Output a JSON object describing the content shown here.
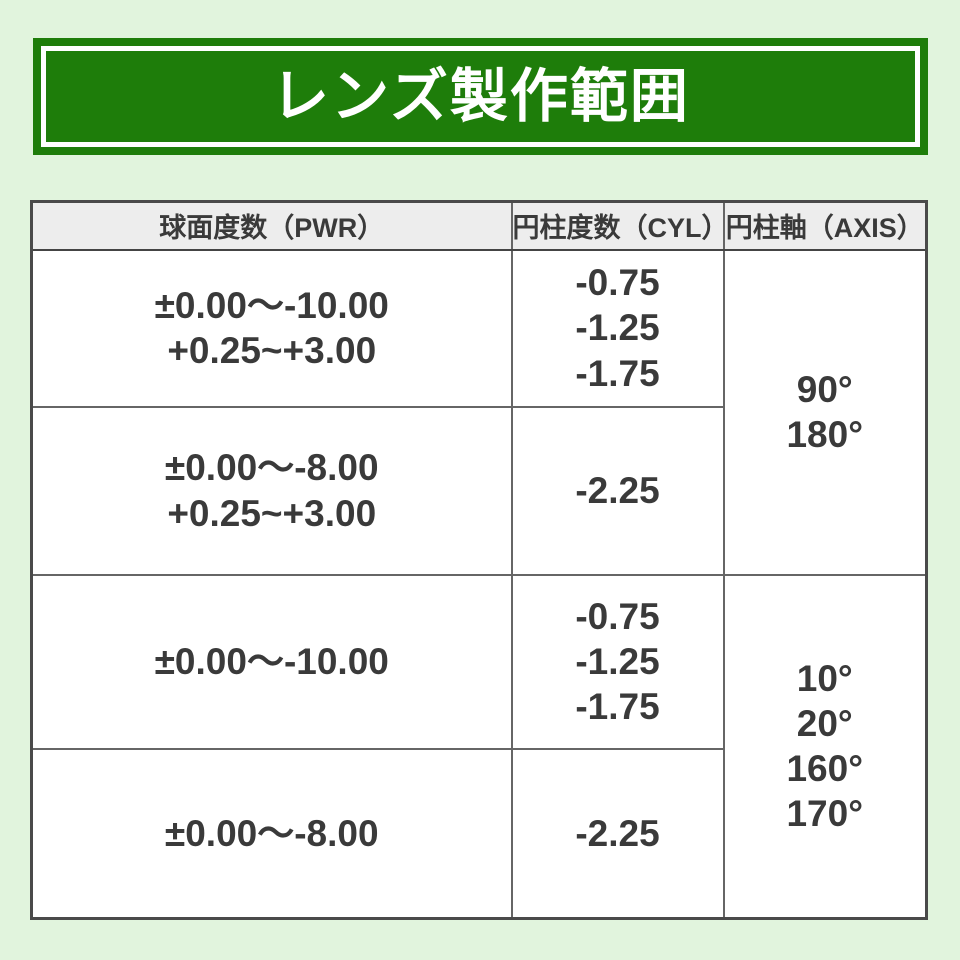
{
  "banner": {
    "title": "レンズ製作範囲"
  },
  "table": {
    "headers": [
      {
        "label": "球面度数（PWR）"
      },
      {
        "label": "円柱度数（CYL）"
      },
      {
        "label": "円柱軸（AXIS）"
      }
    ],
    "groups": [
      {
        "axis_lines": [
          "90°",
          "180°"
        ],
        "rows": [
          {
            "pwr_lines": [
              "±0.00～-10.00",
              "+0.25~+3.00"
            ],
            "cyl_lines": [
              "-0.75",
              "-1.25",
              "-1.75"
            ]
          },
          {
            "pwr_lines": [
              "±0.00～-8.00",
              "+0.25~+3.00"
            ],
            "cyl_lines": [
              "-2.25"
            ]
          }
        ]
      },
      {
        "axis_lines": [
          "10°",
          "20°",
          "160°",
          "170°"
        ],
        "rows": [
          {
            "pwr_lines": [
              "±0.00～-10.00"
            ],
            "cyl_lines": [
              "-0.75",
              "-1.25",
              "-1.75"
            ]
          },
          {
            "pwr_lines": [
              "±0.00～-8.00"
            ],
            "cyl_lines": [
              "-2.25"
            ]
          }
        ]
      }
    ]
  },
  "colors": {
    "page_background": "#e1f4dd",
    "banner_green": "#1e7d0a",
    "banner_border": "#ffffff",
    "header_row_background": "#ededed",
    "table_border": "#4a4a4a",
    "text": "#3a3a3a"
  }
}
